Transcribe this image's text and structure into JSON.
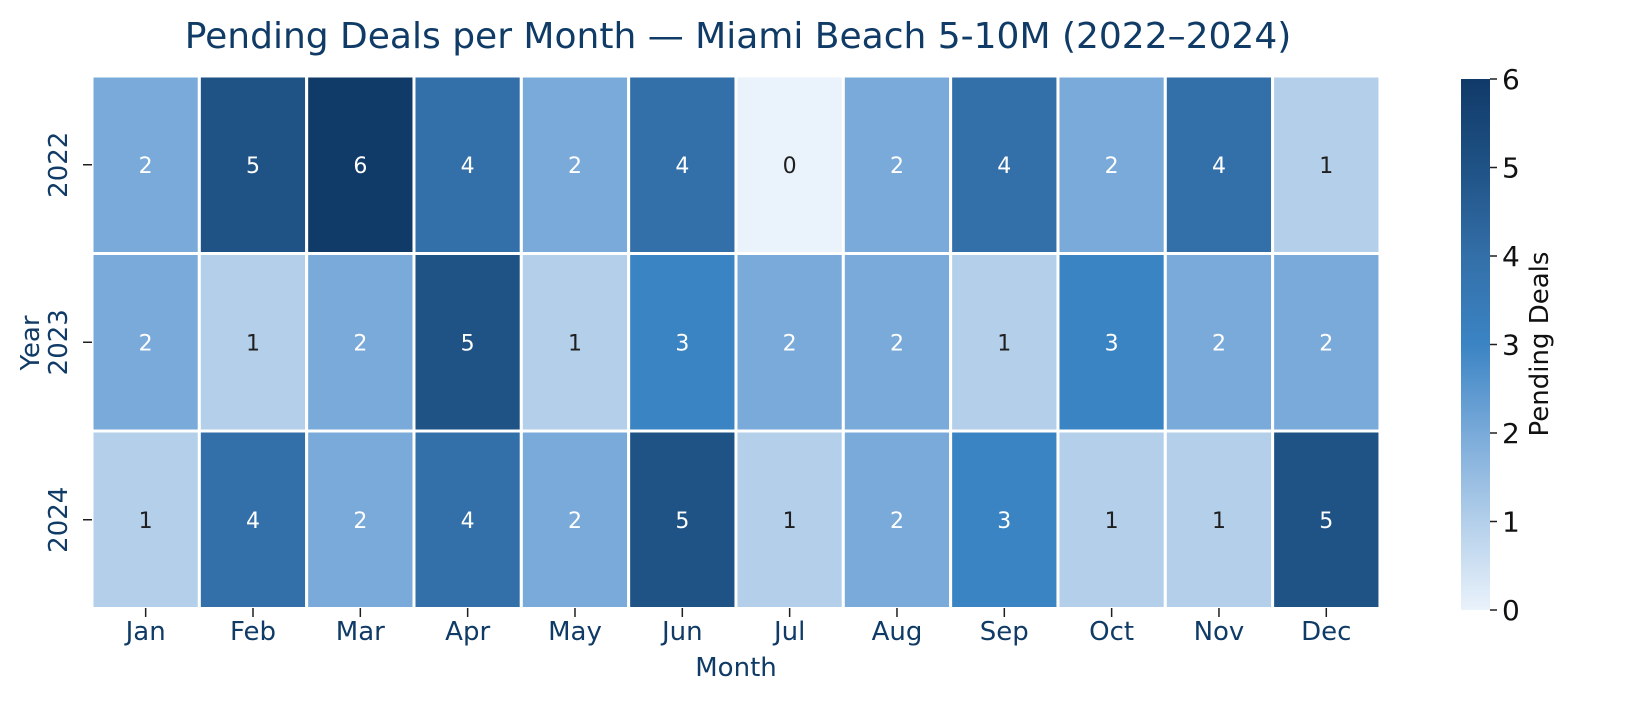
{
  "chart_data": {
    "type": "heatmap",
    "title": "Pending Deals per Month — Miami Beach 5-10M (2022–2024)",
    "xlabel": "Month",
    "ylabel": "Year",
    "x": [
      "Jan",
      "Feb",
      "Mar",
      "Apr",
      "May",
      "Jun",
      "Jul",
      "Aug",
      "Sep",
      "Oct",
      "Nov",
      "Dec"
    ],
    "y": [
      "2022",
      "2023",
      "2024"
    ],
    "values": [
      [
        2,
        5,
        6,
        4,
        2,
        4,
        0,
        2,
        4,
        2,
        4,
        1
      ],
      [
        2,
        1,
        2,
        5,
        1,
        3,
        2,
        2,
        1,
        3,
        2,
        2
      ],
      [
        1,
        4,
        2,
        4,
        2,
        5,
        1,
        2,
        3,
        1,
        1,
        5
      ]
    ],
    "colorbar": {
      "label": "Pending Deals",
      "range": [
        0,
        6
      ],
      "ticks": [
        "0",
        "1",
        "2",
        "3",
        "4",
        "5",
        "6"
      ]
    },
    "colormap": "Blues",
    "colors": {
      "title": "#0f3b66",
      "cell_border": "#ffffff"
    }
  }
}
